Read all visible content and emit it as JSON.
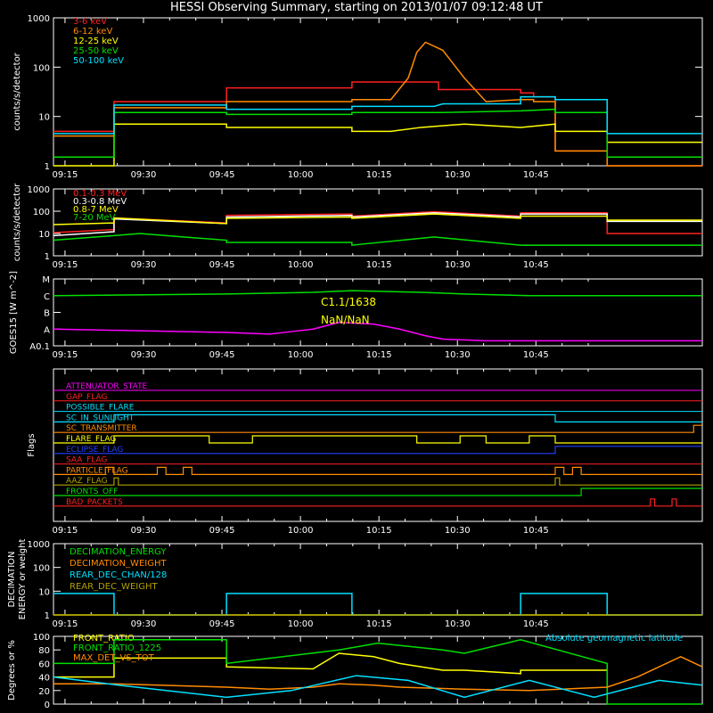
{
  "title": "HESSI Observing Summary, starting on 2013/01/07 09:12:48 UT",
  "time_ticks": [
    "09:15",
    "09:30",
    "09:45",
    "10:00",
    "10:15",
    "10:30",
    "10:45"
  ],
  "colors": {
    "red": "#ff2020",
    "orange": "#ff8c00",
    "yellow": "#ffff00",
    "green": "#00e000",
    "cyan": "#00e0ff",
    "magenta": "#ff00ff",
    "blue": "#2040ff",
    "olive": "#b0a000",
    "white": "#ffffff"
  },
  "chart_data": [
    {
      "id": "lowenergy",
      "type": "line",
      "ylabel": "counts/s/detector",
      "yscale": "log",
      "ylim": [
        1,
        1000
      ],
      "yticks": [
        "1",
        "10",
        "100",
        "1000"
      ],
      "series": [
        {
          "name": "3-6 keV",
          "color": "red",
          "x": [
            0,
            14,
            14,
            40,
            40,
            69,
            69,
            89,
            89,
            108,
            108,
            111,
            111,
            116,
            116,
            128,
            128,
            150
          ],
          "y": [
            5,
            5,
            20,
            20,
            38,
            38,
            50,
            50,
            35,
            35,
            30,
            30,
            25,
            25,
            2,
            2,
            1,
            1
          ]
        },
        {
          "name": "6-12 keV",
          "color": "orange",
          "x": [
            0,
            14,
            14,
            40,
            40,
            69,
            69,
            78,
            82,
            84,
            86,
            90,
            95,
            100,
            108,
            111,
            111,
            116,
            116,
            128,
            128,
            150
          ],
          "y": [
            4,
            4,
            15,
            15,
            20,
            20,
            22,
            22,
            60,
            200,
            320,
            220,
            60,
            20,
            22,
            22,
            20,
            20,
            2,
            2,
            1,
            1
          ]
        },
        {
          "name": "12-25 keV",
          "color": "yellow",
          "x": [
            0,
            14,
            14,
            40,
            40,
            69,
            69,
            78,
            85,
            95,
            108,
            116,
            116,
            128,
            128,
            150
          ],
          "y": [
            1,
            1,
            7,
            7,
            6,
            6,
            5,
            5,
            6,
            7,
            6,
            7,
            5,
            5,
            3,
            3
          ]
        },
        {
          "name": "25-50 keV",
          "color": "green",
          "x": [
            0,
            14,
            14,
            40,
            40,
            69,
            69,
            90,
            108,
            116,
            116,
            128,
            128,
            150
          ],
          "y": [
            1.5,
            1.5,
            12,
            12,
            11,
            11,
            12,
            12,
            13,
            14,
            12,
            12,
            1.5,
            1.5
          ]
        },
        {
          "name": "50-100 keV",
          "color": "cyan",
          "x": [
            0,
            14,
            14,
            40,
            40,
            69,
            69,
            88,
            90,
            108,
            108,
            116,
            116,
            128,
            128,
            150
          ],
          "y": [
            4.5,
            4.5,
            17,
            17,
            14,
            14,
            16,
            16,
            18,
            18,
            25,
            25,
            22,
            22,
            4.5,
            4.5
          ]
        }
      ]
    },
    {
      "id": "highenergy",
      "type": "line",
      "ylabel": "counts/s/detector",
      "yscale": "log",
      "ylim": [
        1,
        1000
      ],
      "yticks": [
        "1",
        "10",
        "100",
        "1000"
      ],
      "series": [
        {
          "name": "0.1-0.3 MeV",
          "color": "red",
          "x": [
            0,
            14,
            14,
            40,
            40,
            69,
            69,
            88,
            108,
            108,
            128,
            128,
            150
          ],
          "y": [
            11,
            15,
            50,
            30,
            65,
            75,
            60,
            95,
            60,
            85,
            85,
            10,
            10
          ]
        },
        {
          "name": "0.3-0.8 MeV",
          "color": "white",
          "x": [
            0,
            14,
            14,
            40,
            40,
            69,
            69,
            88,
            108,
            108,
            128,
            128,
            150
          ],
          "y": [
            8,
            12,
            45,
            28,
            55,
            65,
            55,
            85,
            55,
            75,
            75,
            35,
            35
          ]
        },
        {
          "name": "0.8-7 MeV",
          "color": "yellow",
          "x": [
            0,
            14,
            14,
            40,
            40,
            69,
            69,
            88,
            108,
            108,
            128,
            128,
            150
          ],
          "y": [
            25,
            30,
            50,
            28,
            48,
            55,
            48,
            75,
            48,
            60,
            60,
            40,
            40
          ]
        },
        {
          "name": "7-20 MeV",
          "color": "green",
          "x": [
            0,
            14,
            20,
            30,
            40,
            40,
            69,
            69,
            88,
            108,
            108,
            128,
            128,
            150
          ],
          "y": [
            5,
            8,
            10,
            7,
            5,
            4,
            4,
            3,
            7,
            3,
            3,
            3,
            3,
            3
          ]
        }
      ]
    },
    {
      "id": "goes",
      "type": "line",
      "ylabel": "GOES15 [W m^-2]",
      "yscale": "log",
      "yticks": [
        "A0.1",
        "A",
        "B",
        "C",
        "M"
      ],
      "annotations": [
        "C1.1/1638",
        "NaN/NaN"
      ],
      "series": [
        {
          "name": "goes-long",
          "color": "green",
          "x": [
            0,
            40,
            60,
            69,
            85,
            95,
            110,
            150
          ],
          "y": [
            3.0,
            3.1,
            3.2,
            3.3,
            3.2,
            3.1,
            3.0,
            3.0
          ]
        },
        {
          "name": "goes-short",
          "color": "magenta",
          "x": [
            0,
            20,
            40,
            50,
            55,
            60,
            66,
            74,
            80,
            86,
            90,
            100,
            150
          ],
          "y": [
            1.0,
            0.9,
            0.8,
            0.7,
            0.85,
            1.0,
            1.4,
            1.3,
            1.0,
            0.6,
            0.4,
            0.3,
            0.3
          ]
        }
      ]
    },
    {
      "id": "flags",
      "type": "line",
      "ylabel": "Flags",
      "flags": [
        {
          "name": "ATTENUATOR_STATE",
          "color": "magenta",
          "segs": []
        },
        {
          "name": "GAP_FLAG",
          "color": "red",
          "segs": []
        },
        {
          "name": "POSSIBLE_FLARE",
          "color": "cyan",
          "segs": []
        },
        {
          "name": "SC_IN_SUNLIGHT",
          "color": "cyan",
          "segs": [
            [
              0,
              14,
              0
            ],
            [
              14,
              116,
              1
            ],
            [
              116,
              150,
              0
            ]
          ]
        },
        {
          "name": "SC_TRANSMITTER",
          "color": "orange",
          "segs": [
            [
              0,
              148,
              0
            ],
            [
              148,
              150,
              1
            ]
          ]
        },
        {
          "name": "FLARE_FLAG",
          "color": "yellow",
          "segs": [
            [
              0,
              14,
              0
            ],
            [
              14,
              36,
              1
            ],
            [
              36,
              46,
              0
            ],
            [
              46,
              84,
              1
            ],
            [
              84,
              94,
              0
            ],
            [
              94,
              100,
              1
            ],
            [
              100,
              110,
              0
            ],
            [
              110,
              116,
              1
            ],
            [
              116,
              150,
              0
            ]
          ]
        },
        {
          "name": "ECLIPSE_FLAG",
          "color": "blue",
          "segs": [
            [
              0,
              116,
              0
            ],
            [
              116,
              150,
              1
            ]
          ]
        },
        {
          "name": "SAA_FLAG",
          "color": "red",
          "segs": []
        },
        {
          "name": "PARTICLE_FLAG",
          "color": "orange",
          "segs": [
            [
              0,
              12,
              0
            ],
            [
              12,
              14,
              1
            ],
            [
              14,
              24,
              0
            ],
            [
              24,
              26,
              1
            ],
            [
              26,
              30,
              0
            ],
            [
              30,
              32,
              1
            ],
            [
              32,
              116,
              0
            ],
            [
              116,
              118,
              1
            ],
            [
              118,
              120,
              0
            ],
            [
              120,
              122,
              1
            ],
            [
              122,
              150,
              0
            ]
          ]
        },
        {
          "name": "AAZ_FLAG",
          "color": "olive",
          "segs": [
            [
              0,
              14,
              0
            ],
            [
              14,
              15,
              1
            ],
            [
              15,
              116,
              0
            ],
            [
              116,
              117,
              1
            ],
            [
              117,
              150,
              0
            ]
          ]
        },
        {
          "name": "FRONTS_OFF",
          "color": "green",
          "segs": [
            [
              0,
              122,
              0
            ],
            [
              122,
              150,
              1
            ]
          ]
        },
        {
          "name": "BAD_PACKETS",
          "color": "red",
          "segs": [
            [
              0,
              138,
              0
            ],
            [
              138,
              139,
              1
            ],
            [
              139,
              143,
              0
            ],
            [
              143,
              144,
              1
            ],
            [
              144,
              150,
              0
            ]
          ]
        }
      ]
    },
    {
      "id": "decimation",
      "type": "line",
      "ylabel": "DECIMATION ENERGY or weight",
      "yscale": "log",
      "ylim": [
        1,
        1000
      ],
      "yticks": [
        "1",
        "10",
        "100",
        "1000"
      ],
      "series": [
        {
          "name": "DECIMATION_ENERGY",
          "color": "green",
          "x": [
            0,
            150
          ],
          "y": [
            1,
            1
          ]
        },
        {
          "name": "DECIMATION_WEIGHT",
          "color": "orange",
          "x": [
            0,
            150
          ],
          "y": [
            1,
            1
          ]
        },
        {
          "name": "REAR_DEC_CHAN/128",
          "color": "cyan",
          "x": [
            0,
            14,
            14,
            40,
            40,
            69,
            69,
            108,
            108,
            128,
            128,
            150
          ],
          "y": [
            8,
            8,
            1,
            1,
            8,
            8,
            1,
            1,
            8,
            8,
            1,
            1
          ]
        },
        {
          "name": "REAR_DEC_WEIGHT",
          "color": "olive",
          "x": [
            0,
            150
          ],
          "y": [
            1,
            1
          ]
        }
      ]
    },
    {
      "id": "ratios",
      "type": "line",
      "ylabel": "Degrees or %",
      "ylim": [
        0,
        100
      ],
      "yticks": [
        "0",
        "20",
        "40",
        "60",
        "80",
        "100"
      ],
      "annotations": [
        "Absolute geomagnetic latitude"
      ],
      "series": [
        {
          "name": "FRONT_RATIO",
          "color": "yellow",
          "x": [
            0,
            14,
            14,
            40,
            40,
            60,
            66,
            74,
            80,
            90,
            95,
            108,
            108,
            128
          ],
          "y": [
            40,
            40,
            68,
            68,
            55,
            52,
            75,
            70,
            60,
            50,
            50,
            45,
            50,
            50
          ]
        },
        {
          "name": "FRONT_RATIO_1225",
          "color": "green",
          "x": [
            0,
            14,
            14,
            40,
            40,
            66,
            75,
            90,
            95,
            108,
            108,
            128,
            128,
            150
          ],
          "y": [
            60,
            60,
            95,
            95,
            60,
            80,
            90,
            80,
            75,
            95,
            95,
            60,
            0,
            0
          ]
        },
        {
          "name": "MAX_DET_VS_TOT",
          "color": "orange",
          "x": [
            0,
            14,
            14,
            40,
            50,
            60,
            66,
            74,
            80,
            95,
            110,
            128,
            135,
            145,
            150
          ],
          "y": [
            30,
            30,
            30,
            25,
            22,
            25,
            30,
            28,
            25,
            22,
            20,
            25,
            40,
            70,
            55
          ]
        },
        {
          "name": "Absolute geomagnetic latitude",
          "color": "cyan",
          "x": [
            0,
            15,
            40,
            55,
            70,
            82,
            95,
            110,
            125,
            140,
            150
          ],
          "y": [
            40,
            28,
            10,
            20,
            42,
            35,
            10,
            35,
            10,
            35,
            28
          ]
        }
      ]
    }
  ]
}
